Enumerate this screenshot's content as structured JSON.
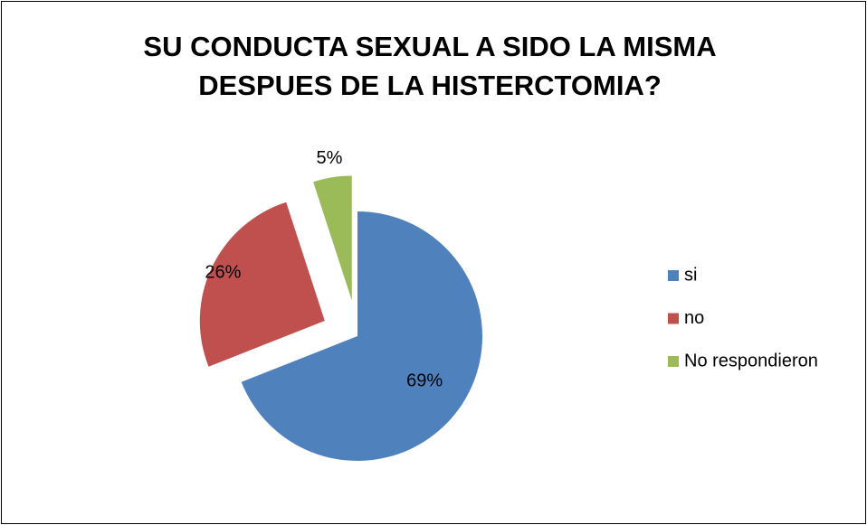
{
  "chart_data": {
    "type": "pie",
    "title": "SU CONDUCTA SEXUAL A SIDO LA MISMA DESPUES DE LA HISTERCTOMIA?",
    "categories": [
      "si",
      "no",
      "No respondieron"
    ],
    "values": [
      69,
      26,
      5
    ],
    "value_labels": [
      "69%",
      "26%",
      "5%"
    ],
    "colors": [
      "#4f81bd",
      "#c0504d",
      "#9bbb59"
    ],
    "legend": "right"
  }
}
